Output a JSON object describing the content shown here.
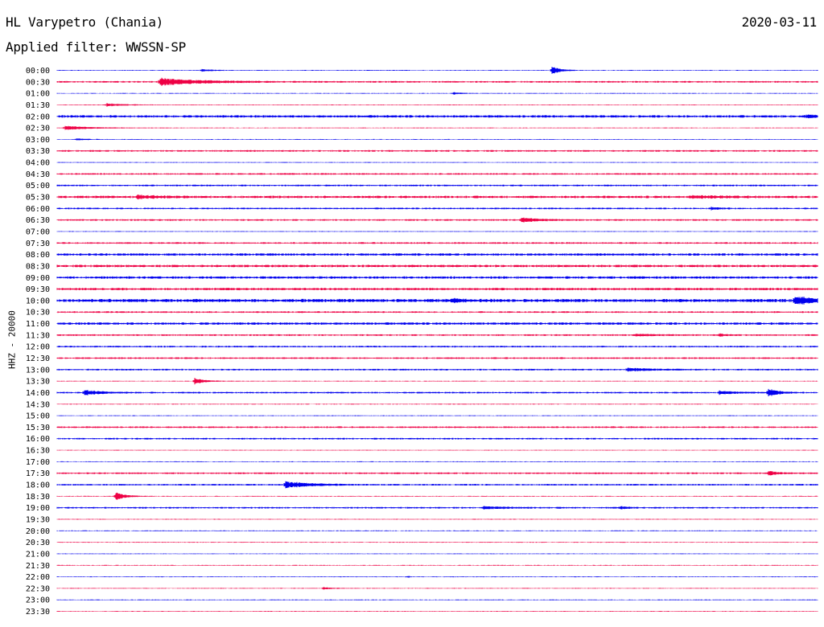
{
  "header": {
    "station": "HL Varypetro (Chania)",
    "date": "2020-03-11",
    "filter": "Applied filter: WWSSN-SP",
    "channel": "HHZ - 20000"
  },
  "colors": {
    "line_a": "#0000ee",
    "line_b": "#ee0044"
  },
  "chart_data": {
    "type": "line",
    "title": "HL Varypetro (Chania)",
    "ylabel": "HHZ - 20000",
    "row_labels": [
      "00:00",
      "00:30",
      "01:00",
      "01:30",
      "02:00",
      "02:30",
      "03:00",
      "03:30",
      "04:00",
      "04:30",
      "05:00",
      "05:30",
      "06:00",
      "06:30",
      "07:00",
      "07:30",
      "08:00",
      "08:30",
      "09:00",
      "09:30",
      "10:00",
      "10:30",
      "11:00",
      "11:30",
      "12:00",
      "12:30",
      "13:00",
      "13:30",
      "14:00",
      "14:30",
      "15:00",
      "15:30",
      "16:00",
      "16:30",
      "17:00",
      "17:30",
      "18:00",
      "18:30",
      "19:00",
      "19:30",
      "20:00",
      "20:30",
      "21:00",
      "21:30",
      "22:00",
      "22:30",
      "23:00",
      "23:30"
    ],
    "noise": [
      1,
      2,
      1,
      1,
      3,
      1,
      1,
      2,
      1,
      2,
      2,
      3,
      2,
      2,
      1,
      2,
      3,
      3,
      3,
      3,
      4,
      2,
      3,
      2,
      2,
      2,
      2,
      1,
      2,
      1,
      1,
      2,
      2,
      1,
      1,
      2,
      2,
      1,
      2,
      1,
      1,
      1,
      1,
      1,
      1,
      1,
      1,
      1
    ],
    "events": [
      {
        "row": 0,
        "t": 0.19,
        "amp": 3,
        "dur": 0.012
      },
      {
        "row": 0,
        "t": 0.65,
        "amp": 11,
        "dur": 0.01
      },
      {
        "row": 1,
        "t": 0.135,
        "amp": 9,
        "dur": 0.05
      },
      {
        "row": 2,
        "t": 0.52,
        "amp": 3,
        "dur": 0.01
      },
      {
        "row": 3,
        "t": 0.065,
        "amp": 4,
        "dur": 0.02
      },
      {
        "row": 4,
        "t": 0.985,
        "amp": 3,
        "dur": 0.02
      },
      {
        "row": 5,
        "t": 0.01,
        "amp": 5,
        "dur": 0.03
      },
      {
        "row": 6,
        "t": 0.025,
        "amp": 2,
        "dur": 0.015
      },
      {
        "row": 11,
        "t": 0.105,
        "amp": 5,
        "dur": 0.02
      },
      {
        "row": 11,
        "t": 0.83,
        "amp": 3,
        "dur": 0.04
      },
      {
        "row": 12,
        "t": 0.86,
        "amp": 3,
        "dur": 0.01
      },
      {
        "row": 13,
        "t": 0.61,
        "amp": 6,
        "dur": 0.02
      },
      {
        "row": 20,
        "t": 0.52,
        "amp": 3,
        "dur": 0.02
      },
      {
        "row": 20,
        "t": 0.97,
        "amp": 9,
        "dur": 0.03
      },
      {
        "row": 23,
        "t": 0.76,
        "amp": 3,
        "dur": 0.02
      },
      {
        "row": 23,
        "t": 0.87,
        "amp": 3,
        "dur": 0.008
      },
      {
        "row": 26,
        "t": 0.75,
        "amp": 4,
        "dur": 0.03
      },
      {
        "row": 27,
        "t": 0.18,
        "amp": 8,
        "dur": 0.012
      },
      {
        "row": 28,
        "t": 0.035,
        "amp": 7,
        "dur": 0.02
      },
      {
        "row": 28,
        "t": 0.87,
        "amp": 4,
        "dur": 0.02
      },
      {
        "row": 28,
        "t": 0.935,
        "amp": 10,
        "dur": 0.012
      },
      {
        "row": 35,
        "t": 0.935,
        "amp": 5,
        "dur": 0.012
      },
      {
        "row": 36,
        "t": 0.3,
        "amp": 8,
        "dur": 0.03
      },
      {
        "row": 37,
        "t": 0.077,
        "amp": 10,
        "dur": 0.012
      },
      {
        "row": 38,
        "t": 0.56,
        "amp": 3,
        "dur": 0.03
      },
      {
        "row": 38,
        "t": 0.74,
        "amp": 3,
        "dur": 0.01
      },
      {
        "row": 44,
        "t": 0.46,
        "amp": 2,
        "dur": 0.004
      },
      {
        "row": 45,
        "t": 0.35,
        "amp": 3,
        "dur": 0.01
      }
    ]
  }
}
